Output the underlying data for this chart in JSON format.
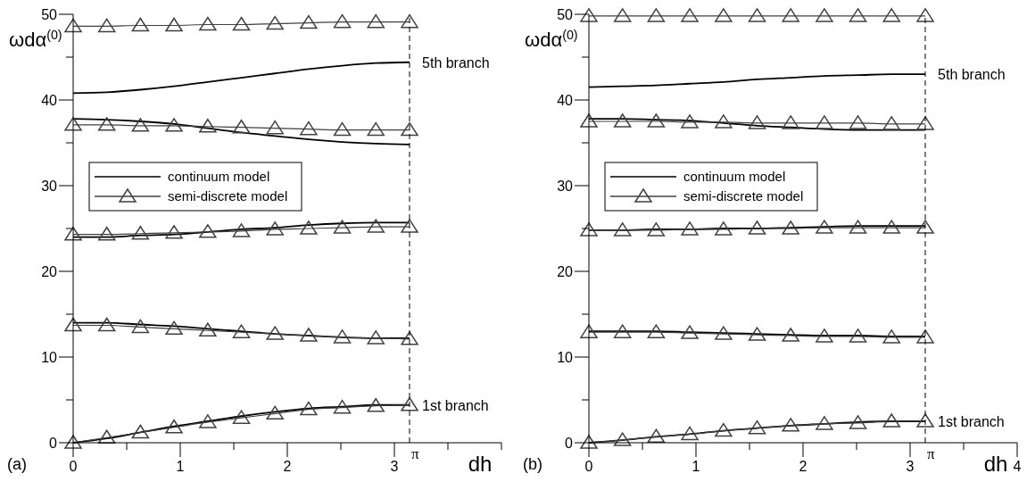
{
  "chart_data": [
    {
      "type": "line",
      "xlabel": "dh",
      "ylabel": "ωdα$^{(0)}$",
      "xlim": [
        0,
        4
      ],
      "ylim": [
        0,
        50
      ],
      "xticks": [
        0,
        {
          "value": 0.5,
          "label": null
        },
        1,
        {
          "value": 1.5,
          "label": null
        },
        2,
        {
          "value": 2.5,
          "label": null
        },
        3,
        {
          "value": 3.5,
          "label": null
        },
        {
          "value": 4,
          "label": null
        }
      ],
      "yticks": [
        0,
        {
          "value": 5,
          "label": null
        },
        10,
        {
          "value": 15,
          "label": null
        },
        20,
        {
          "value": 25,
          "label": null
        },
        30,
        {
          "value": 35,
          "label": null
        },
        40,
        {
          "value": 45,
          "label": null
        },
        50
      ],
      "grid": false,
      "legend": "left",
      "x": [
        0,
        0.314,
        0.628,
        0.942,
        1.257,
        1.571,
        1.885,
        2.199,
        2.513,
        2.827,
        3.142
      ],
      "series": [
        {
          "name": "continuum model",
          "color": "#000000",
          "marker": "none",
          "values": [
            0,
            0.5,
            1.2,
            1.9,
            2.5,
            3.1,
            3.6,
            4.0,
            4.2,
            4.4,
            4.4
          ]
        },
        {
          "color": "#000000",
          "marker": "none",
          "values": [
            14.0,
            14.0,
            13.8,
            13.6,
            13.3,
            13.0,
            12.7,
            12.5,
            12.3,
            12.2,
            12.2
          ]
        },
        {
          "color": "#000000",
          "marker": "none",
          "values": [
            24.0,
            24.0,
            24.2,
            24.3,
            24.6,
            24.9,
            25.1,
            25.4,
            25.6,
            25.7,
            25.7
          ]
        },
        {
          "color": "#000000",
          "marker": "none",
          "values": [
            37.8,
            37.7,
            37.5,
            37.2,
            36.7,
            36.2,
            35.8,
            35.4,
            35.1,
            34.9,
            34.8
          ]
        },
        {
          "color": "#000000",
          "marker": "none",
          "values": [
            40.8,
            40.9,
            41.2,
            41.6,
            42.1,
            42.6,
            43.1,
            43.6,
            44.0,
            44.3,
            44.4
          ]
        },
        {
          "name": "semi-discrete model",
          "color": "#404040",
          "marker": "triangle",
          "values": [
            0,
            0.6,
            1.2,
            1.8,
            2.4,
            2.9,
            3.4,
            3.9,
            4.1,
            4.3,
            4.4
          ]
        },
        {
          "color": "#404040",
          "marker": "triangle",
          "values": [
            13.7,
            13.7,
            13.5,
            13.3,
            13.1,
            12.9,
            12.7,
            12.5,
            12.3,
            12.2,
            12.1
          ]
        },
        {
          "color": "#404040",
          "marker": "triangle",
          "values": [
            24.3,
            24.3,
            24.4,
            24.5,
            24.6,
            24.7,
            24.9,
            25.0,
            25.1,
            25.2,
            25.2
          ]
        },
        {
          "color": "#404040",
          "marker": "triangle",
          "values": [
            37.1,
            37.1,
            37.0,
            37.0,
            36.9,
            36.8,
            36.7,
            36.6,
            36.5,
            36.5,
            36.5
          ]
        },
        {
          "color": "#404040",
          "marker": "triangle",
          "values": [
            48.6,
            48.6,
            48.7,
            48.7,
            48.8,
            48.8,
            48.9,
            49.0,
            49.1,
            49.1,
            49.1
          ]
        }
      ],
      "ref_lines": [
        {
          "axis": "x",
          "value": 3.14159,
          "label": "π",
          "color": "#000000",
          "line_style": "dashed"
        }
      ],
      "annotations": [
        "5th branch",
        "1st branch",
        "(a)"
      ]
    },
    {
      "type": "line",
      "xlabel": "dh",
      "ylabel": "ωdα$^{(0)}$",
      "xlim": [
        0,
        4
      ],
      "ylim": [
        0,
        50
      ],
      "xticks": [
        0,
        {
          "value": 0.5,
          "label": null
        },
        1,
        {
          "value": 1.5,
          "label": null
        },
        2,
        {
          "value": 2.5,
          "label": null
        },
        3,
        {
          "value": 3.5,
          "label": null
        },
        4
      ],
      "yticks": [
        0,
        {
          "value": 5,
          "label": null
        },
        10,
        {
          "value": 15,
          "label": null
        },
        20,
        {
          "value": 25,
          "label": null
        },
        30,
        {
          "value": 35,
          "label": null
        },
        40,
        {
          "value": 45,
          "label": null
        },
        50
      ],
      "grid": false,
      "legend": "left",
      "x": [
        0,
        0.314,
        0.628,
        0.942,
        1.257,
        1.571,
        1.885,
        2.199,
        2.513,
        2.827,
        3.142
      ],
      "series": [
        {
          "name": "continuum model",
          "color": "#000000",
          "marker": "none",
          "values": [
            0,
            0.3,
            0.7,
            1.0,
            1.4,
            1.7,
            2.0,
            2.2,
            2.4,
            2.5,
            2.5
          ]
        },
        {
          "color": "#000000",
          "marker": "none",
          "values": [
            13.0,
            13.0,
            13.0,
            12.9,
            12.8,
            12.7,
            12.6,
            12.5,
            12.5,
            12.4,
            12.4
          ]
        },
        {
          "color": "#000000",
          "marker": "none",
          "values": [
            24.8,
            24.8,
            24.9,
            24.9,
            25.0,
            25.0,
            25.1,
            25.2,
            25.3,
            25.3,
            25.3
          ]
        },
        {
          "color": "#000000",
          "marker": "none",
          "values": [
            37.8,
            37.8,
            37.7,
            37.6,
            37.3,
            37.0,
            36.8,
            36.6,
            36.5,
            36.5,
            36.5
          ]
        },
        {
          "color": "#000000",
          "marker": "none",
          "values": [
            41.5,
            41.6,
            41.7,
            41.9,
            42.1,
            42.4,
            42.6,
            42.8,
            42.9,
            43.0,
            43.0
          ]
        },
        {
          "name": "semi-discrete model",
          "color": "#404040",
          "marker": "triangle",
          "values": [
            0,
            0.3,
            0.7,
            1.0,
            1.4,
            1.7,
            2.0,
            2.2,
            2.3,
            2.5,
            2.5
          ]
        },
        {
          "color": "#404040",
          "marker": "triangle",
          "values": [
            12.9,
            12.9,
            12.9,
            12.8,
            12.7,
            12.6,
            12.5,
            12.4,
            12.4,
            12.3,
            12.3
          ]
        },
        {
          "color": "#404040",
          "marker": "triangle",
          "values": [
            24.8,
            24.8,
            24.8,
            24.9,
            24.9,
            25.0,
            25.0,
            25.1,
            25.1,
            25.1,
            25.1
          ]
        },
        {
          "color": "#404040",
          "marker": "triangle",
          "values": [
            37.5,
            37.5,
            37.5,
            37.4,
            37.4,
            37.3,
            37.3,
            37.3,
            37.3,
            37.2,
            37.2
          ]
        },
        {
          "color": "#404040",
          "marker": "triangle",
          "values": [
            49.8,
            49.8,
            49.8,
            49.8,
            49.8,
            49.8,
            49.8,
            49.8,
            49.8,
            49.8,
            49.8
          ]
        }
      ],
      "ref_lines": [
        {
          "axis": "x",
          "value": 3.14159,
          "label": "π",
          "color": "#000000",
          "line_style": "dashed"
        }
      ],
      "annotations": [
        "5th branch",
        "1st branch",
        "(b)"
      ]
    }
  ]
}
